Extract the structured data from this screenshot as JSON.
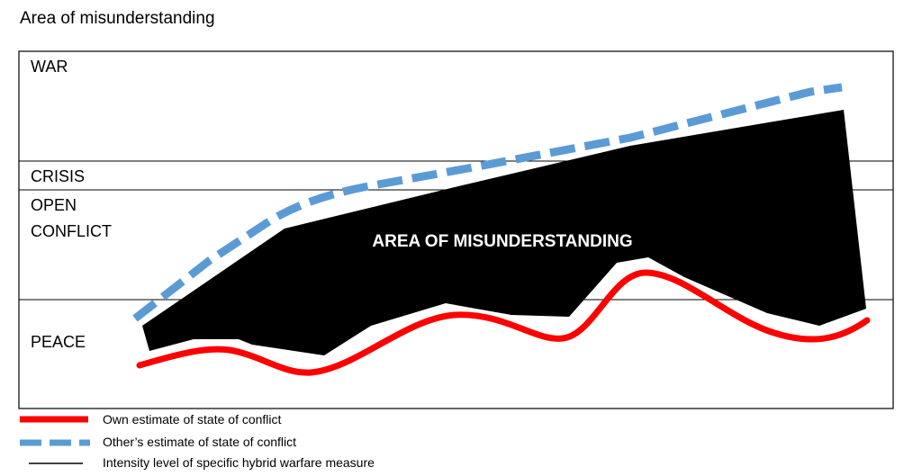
{
  "title": "Area of misunderstanding",
  "levels": {
    "war": "WAR",
    "crisis": "CRISIS",
    "open_conflict_line1": "OPEN",
    "open_conflict_line2": "CONFLICT",
    "peace": "PEACE"
  },
  "area_label": "AREA OF MISUNDERSTANDING",
  "legend": [
    {
      "label": "Own estimate of state of conflict",
      "color": "#ff0000"
    },
    {
      "label": "Other’s estimate of state of conflict",
      "color": "#5b9bd5"
    },
    {
      "label": "Intensity level of specific hybrid warfare measure",
      "color": "#000000"
    }
  ]
}
